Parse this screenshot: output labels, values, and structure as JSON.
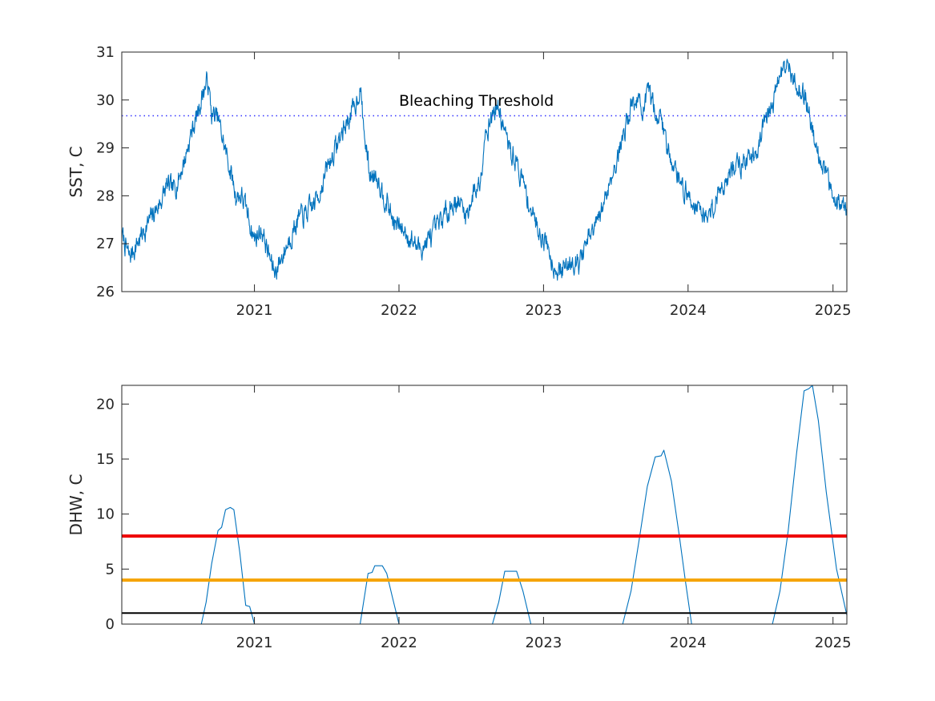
{
  "chart_data": [
    {
      "type": "line",
      "title": "",
      "xlabel": "",
      "ylabel": "SST, C",
      "xlim": [
        "2020-02-01",
        "2025-02-05"
      ],
      "ylim": [
        26,
        31
      ],
      "xticks": [
        {
          "date": "2021-01-01",
          "label": "2021"
        },
        {
          "date": "2022-01-01",
          "label": "2022"
        },
        {
          "date": "2023-01-01",
          "label": "2023"
        },
        {
          "date": "2024-01-01",
          "label": "2024"
        },
        {
          "date": "2025-01-01",
          "label": "2025"
        }
      ],
      "yticks": [
        26,
        27,
        28,
        29,
        30,
        31
      ],
      "grid": false,
      "series": [
        {
          "color": "#0072BD",
          "points": [
            [
              "2020-02-01",
              27.2
            ],
            [
              "2020-02-20",
              26.7
            ],
            [
              "2020-03-10",
              27.0
            ],
            [
              "2020-03-30",
              27.3
            ],
            [
              "2020-04-20",
              27.6
            ],
            [
              "2020-05-10",
              27.9
            ],
            [
              "2020-05-25",
              28.2
            ],
            [
              "2020-06-10",
              28.1
            ],
            [
              "2020-06-25",
              28.4
            ],
            [
              "2020-07-10",
              28.8
            ],
            [
              "2020-07-25",
              29.3
            ],
            [
              "2020-08-10",
              29.7
            ],
            [
              "2020-08-25",
              30.2
            ],
            [
              "2020-09-05",
              30.4
            ],
            [
              "2020-09-15",
              29.7
            ],
            [
              "2020-10-01",
              29.6
            ],
            [
              "2020-10-15",
              29.1
            ],
            [
              "2020-10-30",
              28.6
            ],
            [
              "2020-11-15",
              28.0
            ],
            [
              "2020-11-30",
              28.0
            ],
            [
              "2020-12-15",
              27.6
            ],
            [
              "2021-01-01",
              27.1
            ],
            [
              "2021-01-20",
              27.3
            ],
            [
              "2021-02-05",
              26.8
            ],
            [
              "2021-02-20",
              26.4
            ],
            [
              "2021-03-10",
              26.7
            ],
            [
              "2021-03-30",
              27.1
            ],
            [
              "2021-04-20",
              27.5
            ],
            [
              "2021-05-10",
              27.6
            ],
            [
              "2021-05-30",
              27.8
            ],
            [
              "2021-06-15",
              28.1
            ],
            [
              "2021-07-05",
              28.6
            ],
            [
              "2021-07-25",
              29.0
            ],
            [
              "2021-08-10",
              29.3
            ],
            [
              "2021-08-25",
              29.6
            ],
            [
              "2021-09-10",
              29.8
            ],
            [
              "2021-09-25",
              30.3
            ],
            [
              "2021-10-05",
              29.3
            ],
            [
              "2021-10-20",
              28.4
            ],
            [
              "2021-11-05",
              28.5
            ],
            [
              "2021-11-20",
              28.1
            ],
            [
              "2021-12-05",
              27.8
            ],
            [
              "2021-12-20",
              27.4
            ],
            [
              "2022-01-10",
              27.3
            ],
            [
              "2022-02-01",
              27.1
            ],
            [
              "2022-02-20",
              26.9
            ],
            [
              "2022-03-10",
              27.0
            ],
            [
              "2022-03-30",
              27.2
            ],
            [
              "2022-04-20",
              27.5
            ],
            [
              "2022-05-10",
              27.8
            ],
            [
              "2022-05-30",
              27.9
            ],
            [
              "2022-06-20",
              27.6
            ],
            [
              "2022-07-10",
              28.1
            ],
            [
              "2022-07-25",
              28.3
            ],
            [
              "2022-08-05",
              29.3
            ],
            [
              "2022-08-20",
              29.6
            ],
            [
              "2022-09-05",
              29.9
            ],
            [
              "2022-09-20",
              29.5
            ],
            [
              "2022-10-05",
              29.0
            ],
            [
              "2022-10-20",
              28.8
            ],
            [
              "2022-11-05",
              28.4
            ],
            [
              "2022-11-20",
              28.0
            ],
            [
              "2022-12-05",
              27.6
            ],
            [
              "2022-12-20",
              27.3
            ],
            [
              "2023-01-10",
              27.0
            ],
            [
              "2023-01-25",
              26.6
            ],
            [
              "2023-02-10",
              26.4
            ],
            [
              "2023-02-25",
              26.5
            ],
            [
              "2023-03-15",
              26.7
            ],
            [
              "2023-04-01",
              26.6
            ],
            [
              "2023-04-20",
              27.0
            ],
            [
              "2023-05-10",
              27.3
            ],
            [
              "2023-05-25",
              27.6
            ],
            [
              "2023-06-10",
              28.1
            ],
            [
              "2023-06-25",
              28.5
            ],
            [
              "2023-07-10",
              28.9
            ],
            [
              "2023-07-25",
              29.4
            ],
            [
              "2023-08-10",
              29.9
            ],
            [
              "2023-08-25",
              30.0
            ],
            [
              "2023-09-10",
              29.8
            ],
            [
              "2023-09-25",
              30.1
            ],
            [
              "2023-10-10",
              29.8
            ],
            [
              "2023-10-25",
              29.6
            ],
            [
              "2023-11-10",
              29.0
            ],
            [
              "2023-11-25",
              28.7
            ],
            [
              "2023-12-10",
              28.3
            ],
            [
              "2023-12-25",
              28.1
            ],
            [
              "2024-01-10",
              27.9
            ],
            [
              "2024-01-25",
              27.8
            ],
            [
              "2024-02-10",
              27.6
            ],
            [
              "2024-02-25",
              27.6
            ],
            [
              "2024-03-15",
              28.0
            ],
            [
              "2024-04-01",
              28.3
            ],
            [
              "2024-04-20",
              28.5
            ],
            [
              "2024-05-10",
              28.7
            ],
            [
              "2024-05-30",
              28.7
            ],
            [
              "2024-06-15",
              28.9
            ],
            [
              "2024-07-01",
              29.2
            ],
            [
              "2024-07-15",
              29.6
            ],
            [
              "2024-08-01",
              29.9
            ],
            [
              "2024-08-15",
              30.4
            ],
            [
              "2024-08-30",
              30.7
            ],
            [
              "2024-09-10",
              30.6
            ],
            [
              "2024-09-25",
              30.5
            ],
            [
              "2024-10-10",
              30.2
            ],
            [
              "2024-10-25",
              30.0
            ],
            [
              "2024-11-10",
              29.4
            ],
            [
              "2024-11-25",
              28.9
            ],
            [
              "2024-12-10",
              28.6
            ],
            [
              "2024-12-25",
              28.1
            ],
            [
              "2025-01-10",
              28.0
            ],
            [
              "2025-01-25",
              27.8
            ],
            [
              "2025-02-05",
              27.6
            ]
          ]
        },
        {
          "name": "Bleaching Threshold",
          "style": "dotted",
          "color": "#3333FF",
          "points": [
            [
              "2020-02-01",
              29.67
            ],
            [
              "2025-02-05",
              29.67
            ]
          ]
        }
      ],
      "annotations": [
        {
          "text": "Bleaching Threshold",
          "x": "2022-01-01",
          "y": 29.88
        }
      ]
    },
    {
      "type": "line",
      "title": "",
      "xlabel": "",
      "ylabel": "DHW, C",
      "xlim": [
        "2020-02-01",
        "2025-02-05"
      ],
      "ylim": [
        0,
        21.7
      ],
      "xticks": [
        {
          "date": "2021-01-01",
          "label": "2021"
        },
        {
          "date": "2022-01-01",
          "label": "2022"
        },
        {
          "date": "2023-01-01",
          "label": "2023"
        },
        {
          "date": "2024-01-01",
          "label": "2024"
        },
        {
          "date": "2025-01-01",
          "label": "2025"
        }
      ],
      "yticks": [
        0,
        5,
        10,
        15,
        20
      ],
      "grid": false,
      "series": [
        {
          "color": "#0072BD",
          "points": [
            [
              "2020-02-01",
              0
            ],
            [
              "2020-08-20",
              0
            ],
            [
              "2020-09-01",
              2.0
            ],
            [
              "2020-09-15",
              5.5
            ],
            [
              "2020-10-01",
              8.5
            ],
            [
              "2020-10-10",
              8.8
            ],
            [
              "2020-10-20",
              10.4
            ],
            [
              "2020-11-01",
              10.6
            ],
            [
              "2020-11-10",
              10.4
            ],
            [
              "2020-11-25",
              6.5
            ],
            [
              "2020-12-10",
              1.7
            ],
            [
              "2020-12-20",
              1.6
            ],
            [
              "2021-01-01",
              0
            ],
            [
              "2021-09-25",
              0
            ],
            [
              "2021-10-15",
              4.6
            ],
            [
              "2021-10-25",
              4.7
            ],
            [
              "2021-11-01",
              5.3
            ],
            [
              "2021-11-20",
              5.3
            ],
            [
              "2021-12-01",
              4.6
            ],
            [
              "2021-12-15",
              2.5
            ],
            [
              "2022-01-01",
              0
            ],
            [
              "2022-08-25",
              0
            ],
            [
              "2022-09-10",
              2.0
            ],
            [
              "2022-09-25",
              4.8
            ],
            [
              "2022-10-25",
              4.8
            ],
            [
              "2022-11-10",
              3.0
            ],
            [
              "2022-11-30",
              0
            ],
            [
              "2023-07-20",
              0
            ],
            [
              "2023-08-10",
              3.0
            ],
            [
              "2023-09-01",
              8.0
            ],
            [
              "2023-09-20",
              12.5
            ],
            [
              "2023-10-10",
              15.2
            ],
            [
              "2023-10-25",
              15.3
            ],
            [
              "2023-11-01",
              15.8
            ],
            [
              "2023-11-20",
              13.0
            ],
            [
              "2023-12-10",
              8.0
            ],
            [
              "2023-12-25",
              4.0
            ],
            [
              "2024-01-10",
              0
            ],
            [
              "2024-08-01",
              0
            ],
            [
              "2024-08-20",
              3.0
            ],
            [
              "2024-09-10",
              8.5
            ],
            [
              "2024-10-01",
              15.5
            ],
            [
              "2024-10-20",
              21.2
            ],
            [
              "2024-11-01",
              21.4
            ],
            [
              "2024-11-10",
              21.7
            ],
            [
              "2024-11-25",
              18.5
            ],
            [
              "2024-12-15",
              12.0
            ],
            [
              "2025-01-10",
              5.0
            ],
            [
              "2025-02-05",
              0.8
            ]
          ]
        },
        {
          "color": "#EE0000",
          "width": 4,
          "points": [
            [
              "2020-02-01",
              8
            ],
            [
              "2025-02-05",
              8
            ]
          ]
        },
        {
          "color": "#F5A300",
          "width": 4,
          "points": [
            [
              "2020-02-01",
              4
            ],
            [
              "2025-02-05",
              4
            ]
          ]
        },
        {
          "color": "#000000",
          "width": 2,
          "points": [
            [
              "2020-02-01",
              1
            ],
            [
              "2025-02-05",
              1
            ]
          ]
        }
      ]
    }
  ]
}
